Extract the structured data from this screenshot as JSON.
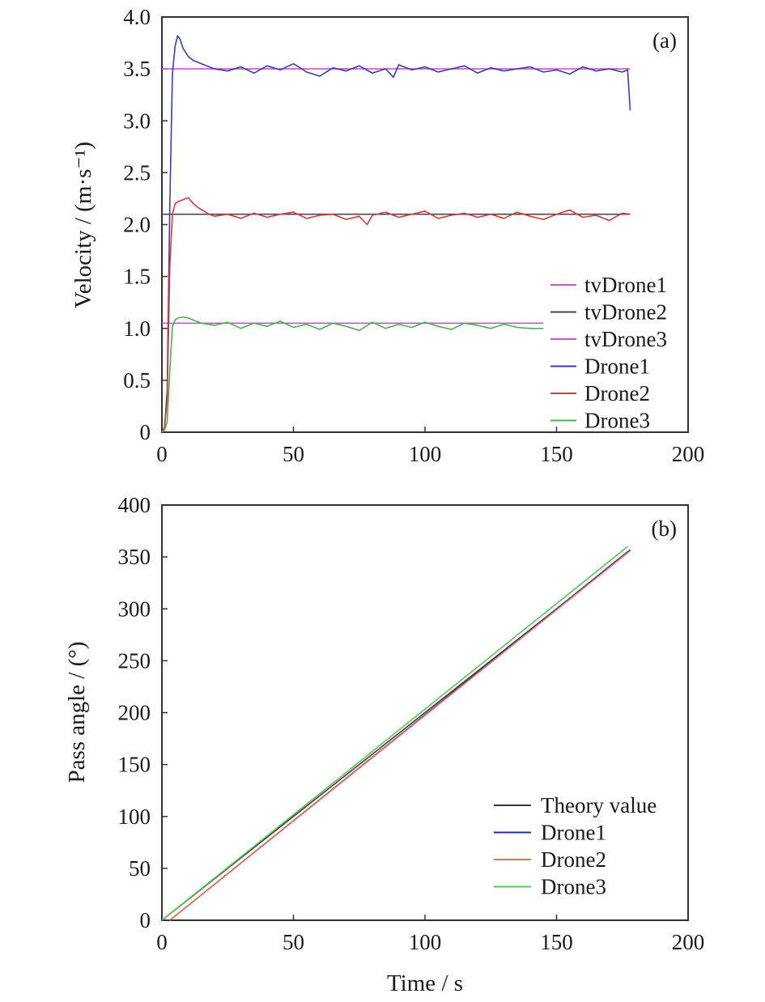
{
  "chart_data": [
    {
      "panel": "(a)",
      "type": "line",
      "title": "",
      "xlabel": "",
      "ylabel": "Velocity / (m·s⁻¹)",
      "xlim": [
        0,
        200
      ],
      "ylim": [
        0,
        4.0
      ],
      "xticks": [
        "0",
        "50",
        "100",
        "150",
        "200"
      ],
      "yticks": [
        "0",
        "0.5",
        "1.0",
        "1.5",
        "2.0",
        "2.5",
        "3.0",
        "3.5",
        "4.0"
      ],
      "grid": false,
      "legend_position": "bottom-right",
      "series": [
        {
          "name": "tvDrone1",
          "color": "#c05cc8",
          "x": [
            0,
            178
          ],
          "y": [
            3.5,
            3.5
          ]
        },
        {
          "name": "tvDrone2",
          "color": "#4a4a4a",
          "x": [
            0,
            178
          ],
          "y": [
            2.1,
            2.1
          ]
        },
        {
          "name": "tvDrone3",
          "color": "#c05cc8",
          "x": [
            0,
            145
          ],
          "y": [
            1.05,
            1.05
          ]
        },
        {
          "name": "Drone1",
          "color": "#3a3fa8",
          "x": [
            0,
            1,
            2,
            3,
            4,
            5,
            6,
            7,
            8,
            10,
            12,
            14,
            16,
            18,
            20,
            25,
            30,
            35,
            40,
            45,
            50,
            55,
            60,
            65,
            70,
            75,
            80,
            85,
            88,
            90,
            95,
            100,
            105,
            110,
            115,
            120,
            125,
            130,
            135,
            140,
            145,
            150,
            155,
            160,
            165,
            170,
            175,
            177,
            178
          ],
          "y": [
            0,
            0.05,
            0.4,
            2.2,
            3.45,
            3.72,
            3.82,
            3.78,
            3.7,
            3.62,
            3.58,
            3.56,
            3.54,
            3.52,
            3.5,
            3.48,
            3.52,
            3.46,
            3.53,
            3.49,
            3.55,
            3.47,
            3.43,
            3.51,
            3.48,
            3.53,
            3.46,
            3.5,
            3.42,
            3.54,
            3.49,
            3.52,
            3.47,
            3.5,
            3.53,
            3.46,
            3.51,
            3.48,
            3.5,
            3.52,
            3.47,
            3.49,
            3.45,
            3.52,
            3.48,
            3.5,
            3.47,
            3.49,
            3.1
          ]
        },
        {
          "name": "Drone2",
          "color": "#d23c3c",
          "x": [
            0,
            1,
            2,
            3,
            4,
            5,
            6,
            8,
            10,
            12,
            14,
            16,
            18,
            20,
            25,
            30,
            35,
            40,
            45,
            50,
            55,
            60,
            65,
            70,
            75,
            78,
            80,
            85,
            90,
            95,
            100,
            105,
            110,
            115,
            120,
            125,
            130,
            135,
            140,
            145,
            150,
            155,
            160,
            165,
            170,
            175,
            178
          ],
          "y": [
            0,
            0.05,
            0.3,
            1.6,
            2.1,
            2.2,
            2.22,
            2.24,
            2.26,
            2.2,
            2.16,
            2.13,
            2.1,
            2.08,
            2.1,
            2.06,
            2.11,
            2.07,
            2.1,
            2.12,
            2.06,
            2.09,
            2.1,
            2.05,
            2.08,
            2.0,
            2.09,
            2.12,
            2.07,
            2.1,
            2.13,
            2.06,
            2.09,
            2.11,
            2.07,
            2.1,
            2.06,
            2.12,
            2.08,
            2.05,
            2.1,
            2.14,
            2.07,
            2.09,
            2.04,
            2.11,
            2.1
          ]
        },
        {
          "name": "Drone3",
          "color": "#4fb04f",
          "x": [
            0,
            1,
            2,
            3,
            4,
            5,
            6,
            8,
            10,
            12,
            15,
            20,
            25,
            30,
            35,
            40,
            45,
            50,
            55,
            60,
            65,
            70,
            75,
            80,
            85,
            90,
            95,
            100,
            105,
            110,
            115,
            120,
            125,
            130,
            135,
            140,
            145
          ],
          "y": [
            0,
            0.02,
            0.1,
            0.6,
            1.02,
            1.08,
            1.1,
            1.11,
            1.1,
            1.08,
            1.05,
            1.03,
            1.06,
            1.0,
            1.05,
            1.02,
            1.07,
            1.01,
            1.04,
            0.99,
            1.05,
            1.02,
            0.98,
            1.06,
            1.0,
            1.04,
            1.01,
            1.06,
            1.02,
            0.99,
            1.05,
            1.03,
            1.0,
            1.04,
            1.01,
            1.0,
            1.0
          ]
        }
      ],
      "legend": [
        "tvDrone1",
        "tvDrone2",
        "tvDrone3",
        "Drone1",
        "Drone2",
        "Drone3"
      ]
    },
    {
      "panel": "(b)",
      "type": "line",
      "title": "",
      "xlabel": "Time / s",
      "ylabel": "Pass angle / (°)",
      "xlim": [
        0,
        200
      ],
      "ylim": [
        0,
        400
      ],
      "xticks": [
        "0",
        "50",
        "100",
        "150",
        "200"
      ],
      "yticks": [
        "0",
        "50",
        "100",
        "150",
        "200",
        "250",
        "300",
        "350",
        "400"
      ],
      "grid": false,
      "legend_position": "bottom-right",
      "series": [
        {
          "name": "Theory value",
          "color": "#3a3a3a",
          "x": [
            0,
            178
          ],
          "y": [
            0,
            356
          ]
        },
        {
          "name": "Drone1",
          "color": "#2a2f8a",
          "x": [
            3,
            178
          ],
          "y": [
            0,
            357
          ]
        },
        {
          "name": "Drone2",
          "color": "#e07060",
          "x": [
            3,
            178
          ],
          "y": [
            0,
            356
          ]
        },
        {
          "name": "Drone3",
          "color": "#5cc05c",
          "x": [
            0,
            177
          ],
          "y": [
            0,
            360
          ]
        }
      ],
      "legend": [
        "Theory value",
        "Drone1",
        "Drone2",
        "Drone3"
      ]
    }
  ]
}
